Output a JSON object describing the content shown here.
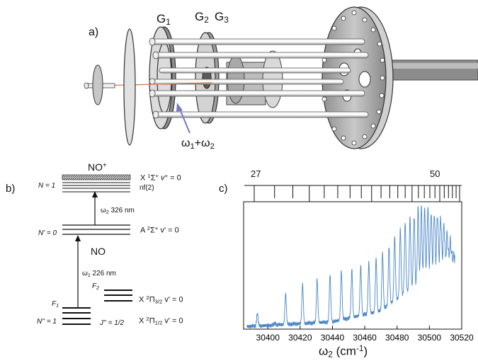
{
  "panel_a": {
    "label": "a)",
    "grid_labels": [
      {
        "main": "G",
        "sub": "1"
      },
      {
        "main": "G",
        "sub": "2"
      },
      {
        "main": "G",
        "sub": "3"
      }
    ],
    "beam_label": {
      "w1": "ω",
      "w1_sub": "1",
      "plus": "+",
      "w2": "ω",
      "w2_sub": "2"
    }
  },
  "panel_b": {
    "label": "b)",
    "ion_title": {
      "main": "NO",
      "sup": "+"
    },
    "n_eq_1": "N = 1",
    "nf2": "nf(2)",
    "x_ion_state": {
      "pre": "X ",
      "sup1": "1",
      "sigma": "Σ",
      "sup2": "+",
      "post": " v",
      "sup3": "+",
      "tail": " = 0"
    },
    "omega2": {
      "w": "ω",
      "sub": "2",
      "text": "  326 nm"
    },
    "n_prime_0": "N' = 0",
    "a_state": {
      "pre": "A ",
      "sup1": "2",
      "sigma": "Σ",
      "sup2": "+",
      "tail": " v' = 0"
    },
    "no_label": "NO",
    "omega1": {
      "w": "ω",
      "sub": "1",
      "text": "  226 nm"
    },
    "f2": {
      "main": "F",
      "sub": "2"
    },
    "f1": {
      "main": "F",
      "sub": "1"
    },
    "x32_state": {
      "pre": "X ",
      "sup1": "2",
      "pi": "Π",
      "sub": "3/2",
      "tail": " v' = 0"
    },
    "x12_state": {
      "pre": "X ",
      "sup1": "2",
      "pi": "Π",
      "sub": "1/2",
      "tail": " v' = 0"
    },
    "n_dprime_1": "N'' = 1",
    "j_dprime": "J'' = 1/2"
  },
  "panel_c": {
    "label": "c)",
    "series_markers": {
      "first": "27",
      "last": "50"
    },
    "xlabel": {
      "w": "ω",
      "sub": "2",
      "unit": " (cm",
      "sup": "-1",
      "close": ")"
    }
  },
  "colors": {
    "spectrum": "#4a86c6",
    "beam": "#7a78c0",
    "laser": "#d27a4a"
  },
  "chart_data": {
    "type": "line",
    "title": "",
    "xlabel": "ω2 (cm-1)",
    "ylabel": "",
    "xlim": [
      30385,
      30520
    ],
    "ylim": [
      0,
      1
    ],
    "xticks": [
      30400,
      30420,
      30440,
      30460,
      30480,
      30500,
      30520
    ],
    "rydberg_n_range": [
      27,
      50
    ],
    "peaks": [
      {
        "x": 30393.5,
        "y": 0.13
      },
      {
        "x": 30404.5,
        "y": 0.05
      },
      {
        "x": 30411.0,
        "y": 0.29
      },
      {
        "x": 30421.5,
        "y": 0.37
      },
      {
        "x": 30430.5,
        "y": 0.41
      },
      {
        "x": 30438.5,
        "y": 0.45
      },
      {
        "x": 30445.5,
        "y": 0.48
      },
      {
        "x": 30452.0,
        "y": 0.49
      },
      {
        "x": 30457.5,
        "y": 0.52
      },
      {
        "x": 30462.5,
        "y": 0.55
      },
      {
        "x": 30467.0,
        "y": 0.58
      },
      {
        "x": 30471.0,
        "y": 0.63
      },
      {
        "x": 30475.0,
        "y": 0.68
      },
      {
        "x": 30478.5,
        "y": 0.76
      },
      {
        "x": 30482.0,
        "y": 0.82
      },
      {
        "x": 30485.0,
        "y": 0.88
      },
      {
        "x": 30488.0,
        "y": 0.92
      },
      {
        "x": 30490.5,
        "y": 0.95
      },
      {
        "x": 30493.0,
        "y": 0.97
      },
      {
        "x": 30495.0,
        "y": 0.99
      },
      {
        "x": 30497.0,
        "y": 0.98
      },
      {
        "x": 30499.0,
        "y": 1.0
      },
      {
        "x": 30501.0,
        "y": 0.97
      },
      {
        "x": 30503.0,
        "y": 0.96
      },
      {
        "x": 30505.0,
        "y": 0.95
      },
      {
        "x": 30507.0,
        "y": 0.92
      },
      {
        "x": 30509.0,
        "y": 0.86
      },
      {
        "x": 30511.0,
        "y": 0.78
      },
      {
        "x": 30513.0,
        "y": 0.72
      }
    ],
    "baseline": [
      {
        "x": 30385,
        "y": 0.02
      },
      {
        "x": 30440,
        "y": 0.06
      },
      {
        "x": 30470,
        "y": 0.15
      },
      {
        "x": 30490,
        "y": 0.35
      },
      {
        "x": 30505,
        "y": 0.55
      },
      {
        "x": 30516,
        "y": 0.6
      }
    ]
  }
}
